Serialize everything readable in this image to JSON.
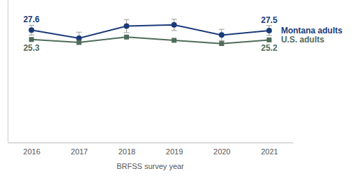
{
  "chart_data": {
    "type": "line",
    "xlabel": "BRFSS survey year",
    "categories": [
      "2016",
      "2017",
      "2018",
      "2019",
      "2020",
      "2021"
    ],
    "series": [
      {
        "name": "Montana adults",
        "color": "#1b3a78",
        "marker": "circle",
        "values": [
          27.6,
          25.6,
          28.6,
          28.9,
          26.4,
          27.5
        ],
        "error": [
          1.2,
          1.5,
          1.6,
          1.4,
          1.4,
          1.2
        ],
        "value_labels": [
          "27.6",
          null,
          null,
          null,
          null,
          "27.5"
        ]
      },
      {
        "name": "U.S. adults",
        "color": "#4f6b5a",
        "marker": "square",
        "values": [
          25.3,
          24.6,
          25.9,
          25.1,
          24.3,
          25.2
        ],
        "value_labels": [
          "25.3",
          null,
          null,
          null,
          null,
          "25.2"
        ]
      }
    ],
    "ylim": [
      0,
      35
    ],
    "yticks": [],
    "tick_labels": "x",
    "grid": false,
    "data_labels": true
  }
}
